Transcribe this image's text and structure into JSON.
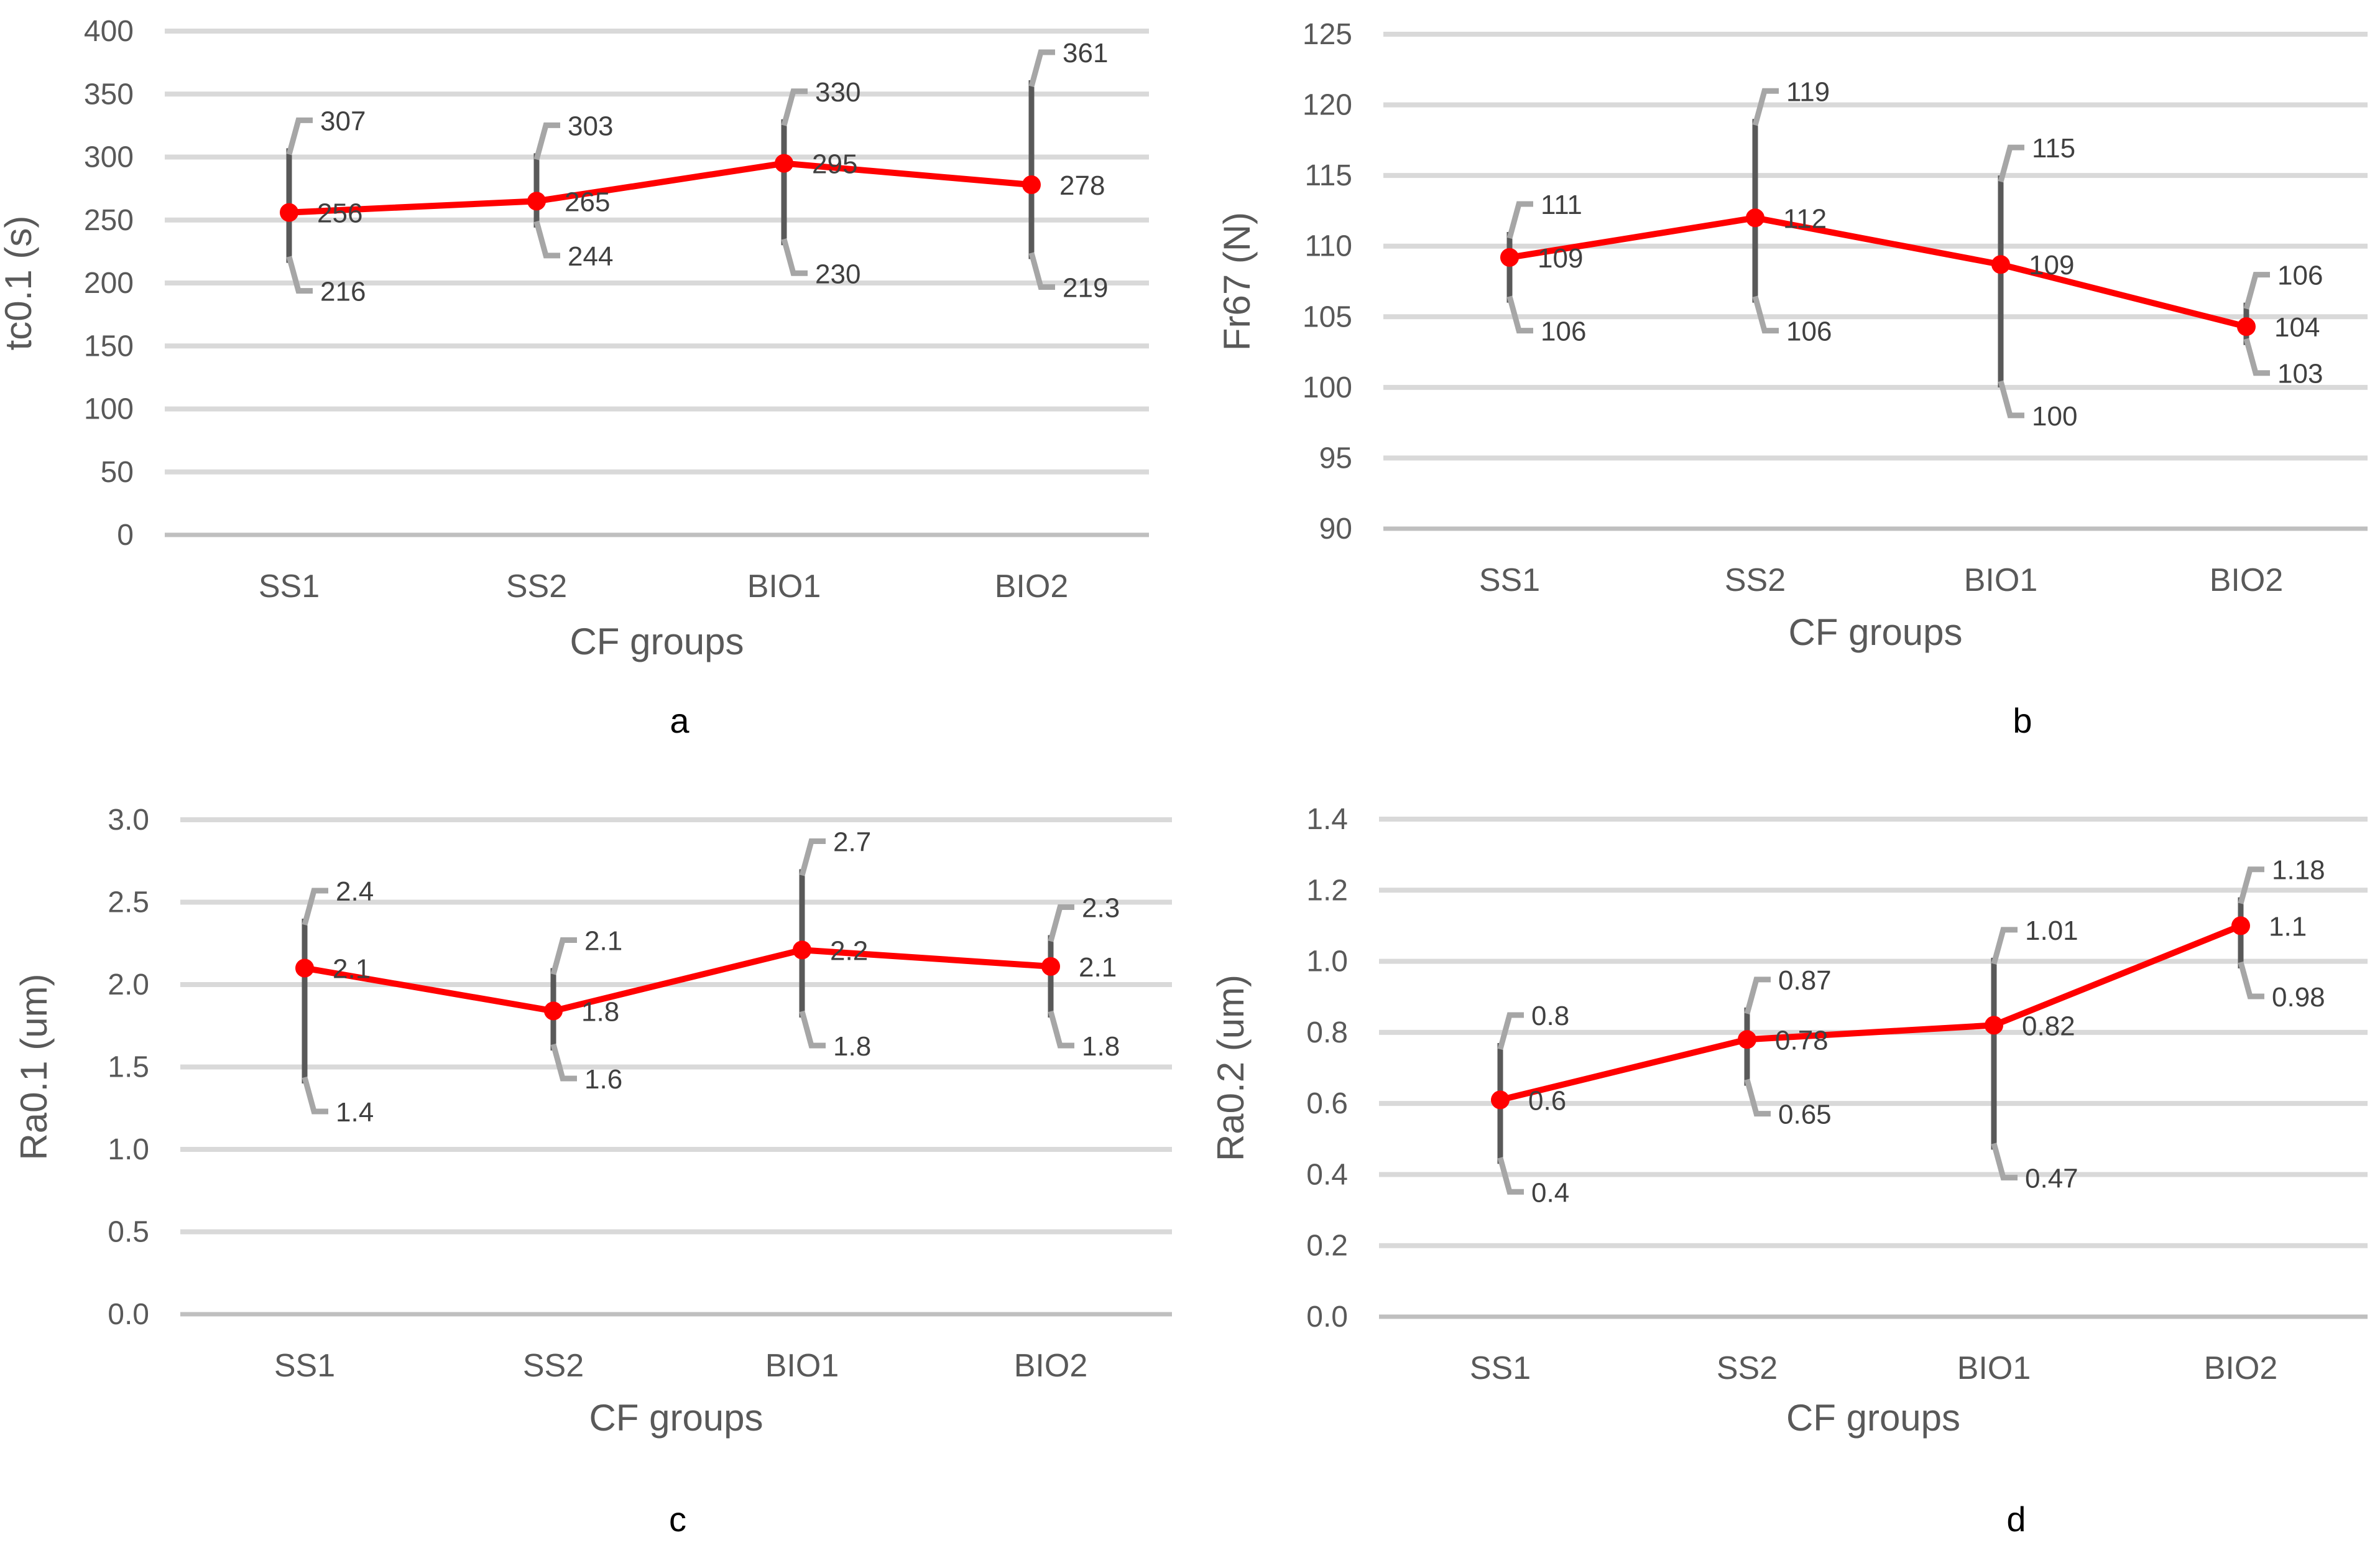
{
  "style": {
    "line_color": "#ff0000",
    "grid_color": "#d9d9d9",
    "baseline_color": "#bfbfbf",
    "error_bar_color": "#595959",
    "label_leader_color": "#a6a6a6",
    "text_color": "#595959"
  },
  "chart_data": [
    {
      "panel": "a",
      "type": "line",
      "xlabel": "CF groups",
      "ylabel": "tc0.1 (s)",
      "categories": [
        "SS1",
        "SS2",
        "BIO1",
        "BIO2"
      ],
      "ylim": [
        0,
        400
      ],
      "yticks": [
        0,
        50,
        100,
        150,
        200,
        250,
        300,
        350,
        400
      ],
      "ytick_labels": [
        "0",
        "50",
        "100",
        "150",
        "200",
        "250",
        "300",
        "350",
        "400"
      ],
      "grid": true,
      "series": [
        {
          "values": [
            256,
            265,
            295,
            278
          ],
          "upper": [
            307,
            303,
            330,
            361
          ],
          "lower": [
            216,
            244,
            230,
            219
          ],
          "value_labels": [
            "256",
            "265",
            "295",
            "278"
          ],
          "upper_labels": [
            "307",
            "303",
            "330",
            "361"
          ],
          "lower_labels": [
            "216",
            "244",
            "230",
            "219"
          ]
        }
      ]
    },
    {
      "panel": "b",
      "type": "line",
      "xlabel": "CF groups",
      "ylabel": "Fr67 (N)",
      "categories": [
        "SS1",
        "SS2",
        "BIO1",
        "BIO2"
      ],
      "ylim": [
        90,
        125
      ],
      "yticks": [
        90,
        95,
        100,
        105,
        110,
        115,
        120,
        125
      ],
      "ytick_labels": [
        "90",
        "95",
        "100",
        "105",
        "110",
        "115",
        "120",
        "125"
      ],
      "grid": true,
      "series": [
        {
          "values": [
            109.2,
            112,
            108.7,
            104.3
          ],
          "upper": [
            111,
            119,
            115,
            106
          ],
          "lower": [
            106,
            106,
            100,
            103
          ],
          "value_labels": [
            "109",
            "112",
            "109",
            "104"
          ],
          "upper_labels": [
            "111",
            "119",
            "115",
            "106"
          ],
          "lower_labels": [
            "106",
            "106",
            "100",
            "103"
          ]
        }
      ]
    },
    {
      "panel": "c",
      "type": "line",
      "xlabel": "CF groups",
      "ylabel": "Ra0.1 (um)",
      "categories": [
        "SS1",
        "SS2",
        "BIO1",
        "BIO2"
      ],
      "ylim": [
        0,
        3
      ],
      "yticks": [
        0,
        0.5,
        1,
        1.5,
        2,
        2.5,
        3
      ],
      "ytick_labels": [
        "0.0",
        "0.5",
        "1.0",
        "1.5",
        "2.0",
        "2.5",
        "3.0"
      ],
      "grid": true,
      "series": [
        {
          "values": [
            2.1,
            1.84,
            2.21,
            2.11
          ],
          "upper": [
            2.4,
            2.1,
            2.7,
            2.3
          ],
          "lower": [
            1.4,
            1.6,
            1.8,
            1.8
          ],
          "value_labels": [
            "2.1",
            "1.8",
            "2.2",
            "2.1"
          ],
          "upper_labels": [
            "2.4",
            "2.1",
            "2.7",
            "2.3"
          ],
          "lower_labels": [
            "1.4",
            "1.6",
            "1.8",
            "1.8"
          ]
        }
      ]
    },
    {
      "panel": "d",
      "type": "line",
      "xlabel": "CF groups",
      "ylabel": "Ra0.2 (um)",
      "categories": [
        "SS1",
        "SS2",
        "BIO1",
        "BIO2"
      ],
      "ylim": [
        0,
        1.4
      ],
      "yticks": [
        0,
        0.2,
        0.4,
        0.6,
        0.8,
        1,
        1.2,
        1.4
      ],
      "ytick_labels": [
        "0.0",
        "0.2",
        "0.4",
        "0.6",
        "0.8",
        "1.0",
        "1.2",
        "1.4"
      ],
      "grid": true,
      "series": [
        {
          "values": [
            0.61,
            0.78,
            0.82,
            1.1
          ],
          "upper": [
            0.77,
            0.87,
            1.01,
            1.18
          ],
          "lower": [
            0.43,
            0.65,
            0.47,
            0.98
          ],
          "value_labels": [
            "0.6",
            "0.78",
            "0.82",
            "1.1"
          ],
          "upper_labels": [
            "0.8",
            "0.87",
            "1.01",
            "1.18"
          ],
          "lower_labels": [
            "0.4",
            "0.65",
            "0.47",
            "0.98"
          ]
        }
      ]
    }
  ]
}
